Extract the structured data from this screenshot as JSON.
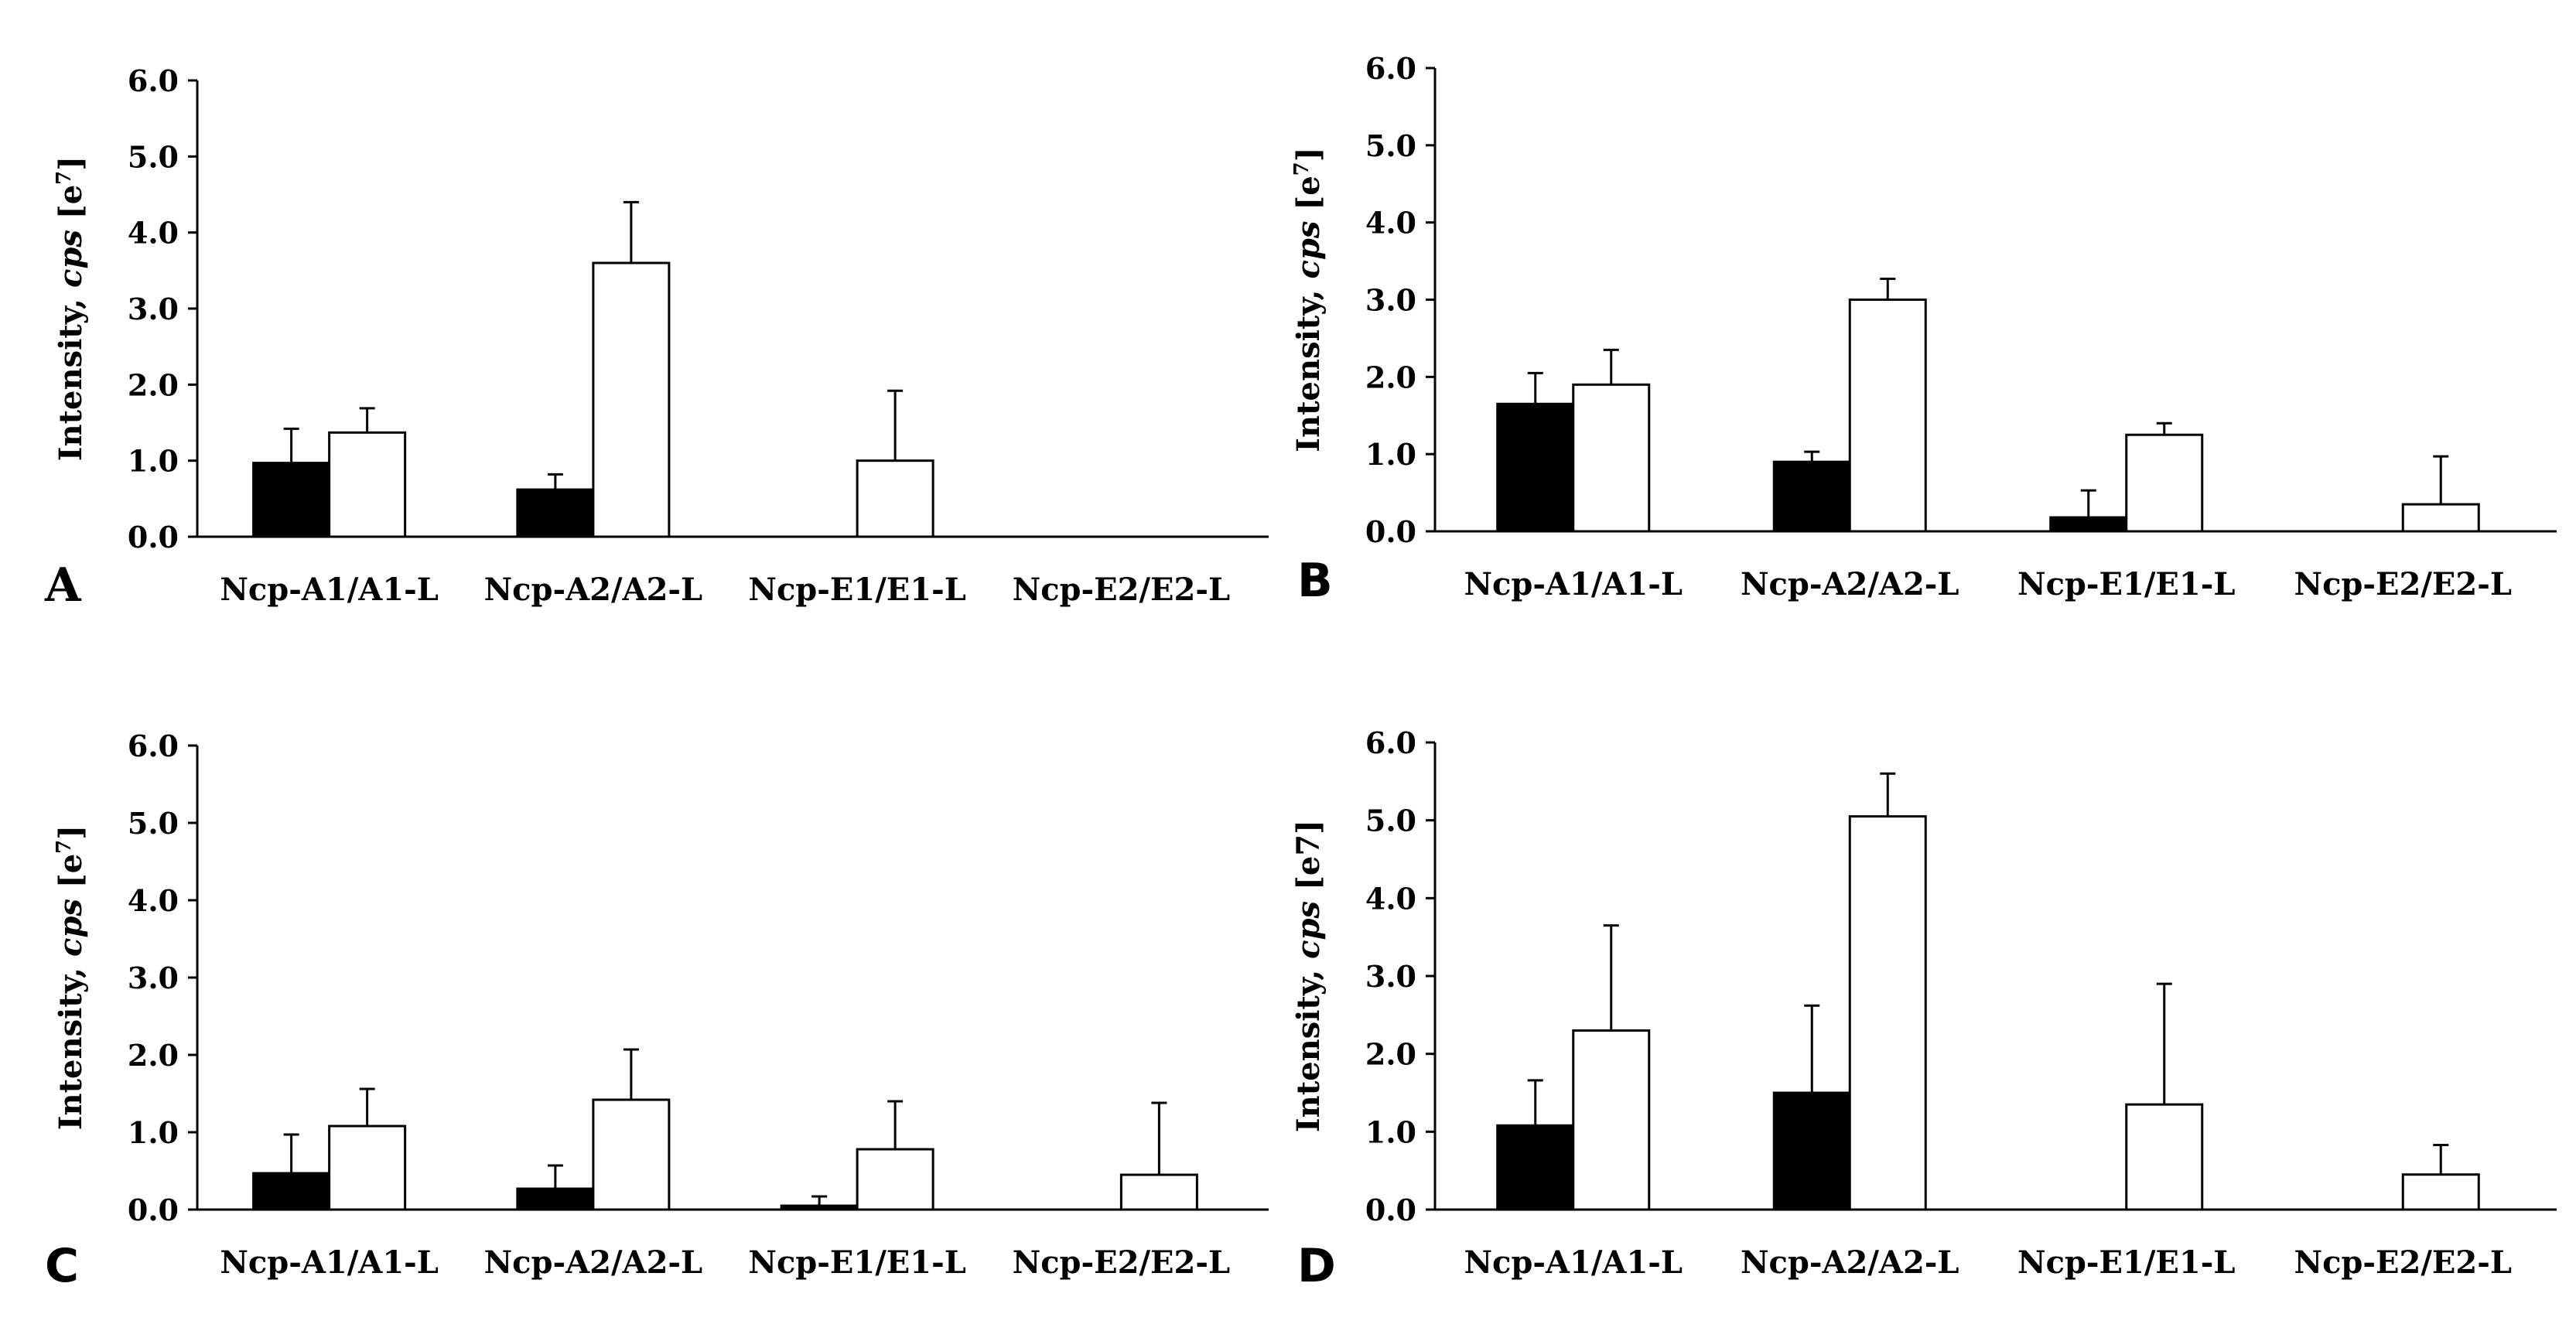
{
  "colors": {
    "filled": "#000000",
    "open": "#ffffff",
    "stroke": "#000000"
  },
  "chart_data": [
    {
      "type": "bar",
      "panel_label": "A",
      "ylabel_prefix": "Intensity, ",
      "ylabel_italic": "cps",
      "ylabel_unit": " [e",
      "ylabel_sup": "7",
      "ylabel_close": "]",
      "ylim": [
        0,
        6
      ],
      "yticks": [
        "0.0",
        "1.0",
        "2.0",
        "3.0",
        "4.0",
        "5.0",
        "6.0"
      ],
      "categories": [
        "Ncp-A1/A1-L",
        "Ncp-A2/A2-L",
        "Ncp-E1/E1-L",
        "Ncp-E2/E2-L"
      ],
      "series": [
        {
          "name": "filled",
          "values": [
            0.97,
            0.62,
            0,
            0
          ],
          "errors": [
            0.45,
            0.2,
            0,
            0
          ]
        },
        {
          "name": "open",
          "values": [
            1.37,
            3.6,
            1.0,
            0
          ],
          "errors": [
            0.32,
            0.8,
            0.92,
            0
          ]
        }
      ]
    },
    {
      "type": "bar",
      "panel_label": "B",
      "ylabel_prefix": "Intensity, ",
      "ylabel_italic": "cps",
      "ylabel_unit": " [e",
      "ylabel_sup": "7",
      "ylabel_close": "]",
      "ylim": [
        0,
        6
      ],
      "yticks": [
        "0.0",
        "1.0",
        "2.0",
        "3.0",
        "4.0",
        "5.0",
        "6.0"
      ],
      "categories": [
        "Ncp-A1/A1-L",
        "Ncp-A2/A2-L",
        "Ncp-E1/E1-L",
        "Ncp-E2/E2-L"
      ],
      "series": [
        {
          "name": "filled",
          "values": [
            1.65,
            0.9,
            0.18,
            0
          ],
          "errors": [
            0.4,
            0.13,
            0.35,
            0
          ]
        },
        {
          "name": "open",
          "values": [
            1.9,
            3.0,
            1.25,
            0.35
          ],
          "errors": [
            0.45,
            0.27,
            0.15,
            0.62
          ]
        }
      ]
    },
    {
      "type": "bar",
      "panel_label": "C",
      "ylabel_prefix": "Intensity, ",
      "ylabel_italic": "cps",
      "ylabel_unit": " [e",
      "ylabel_sup": "7",
      "ylabel_close": "]",
      "ylim": [
        0,
        6
      ],
      "yticks": [
        "0.0",
        "1.0",
        "2.0",
        "3.0",
        "4.0",
        "5.0",
        "6.0"
      ],
      "categories": [
        "Ncp-A1/A1-L",
        "Ncp-A2/A2-L",
        "Ncp-E1/E1-L",
        "Ncp-E2/E2-L"
      ],
      "series": [
        {
          "name": "filled",
          "values": [
            0.47,
            0.27,
            0.05,
            0
          ],
          "errors": [
            0.5,
            0.3,
            0.12,
            0
          ]
        },
        {
          "name": "open",
          "values": [
            1.08,
            1.42,
            0.78,
            0.45
          ],
          "errors": [
            0.48,
            0.65,
            0.62,
            0.93
          ]
        }
      ]
    },
    {
      "type": "bar",
      "panel_label": "D",
      "ylabel_prefix": "Intensity, ",
      "ylabel_italic": "cps",
      "ylabel_unit": " [e7]",
      "ylabel_sup": "",
      "ylabel_close": "",
      "ylim": [
        0,
        6
      ],
      "yticks": [
        "0.0",
        "1.0",
        "2.0",
        "3.0",
        "4.0",
        "5.0",
        "6.0"
      ],
      "categories": [
        "Ncp-A1/A1-L",
        "Ncp-A2/A2-L",
        "Ncp-E1/E1-L",
        "Ncp-E2/E2-L"
      ],
      "series": [
        {
          "name": "filled",
          "values": [
            1.08,
            1.5,
            0,
            0
          ],
          "errors": [
            0.58,
            1.12,
            0,
            0
          ]
        },
        {
          "name": "open",
          "values": [
            2.3,
            5.05,
            1.35,
            0.45
          ],
          "errors": [
            1.35,
            0.55,
            1.55,
            0.38
          ]
        }
      ]
    }
  ]
}
